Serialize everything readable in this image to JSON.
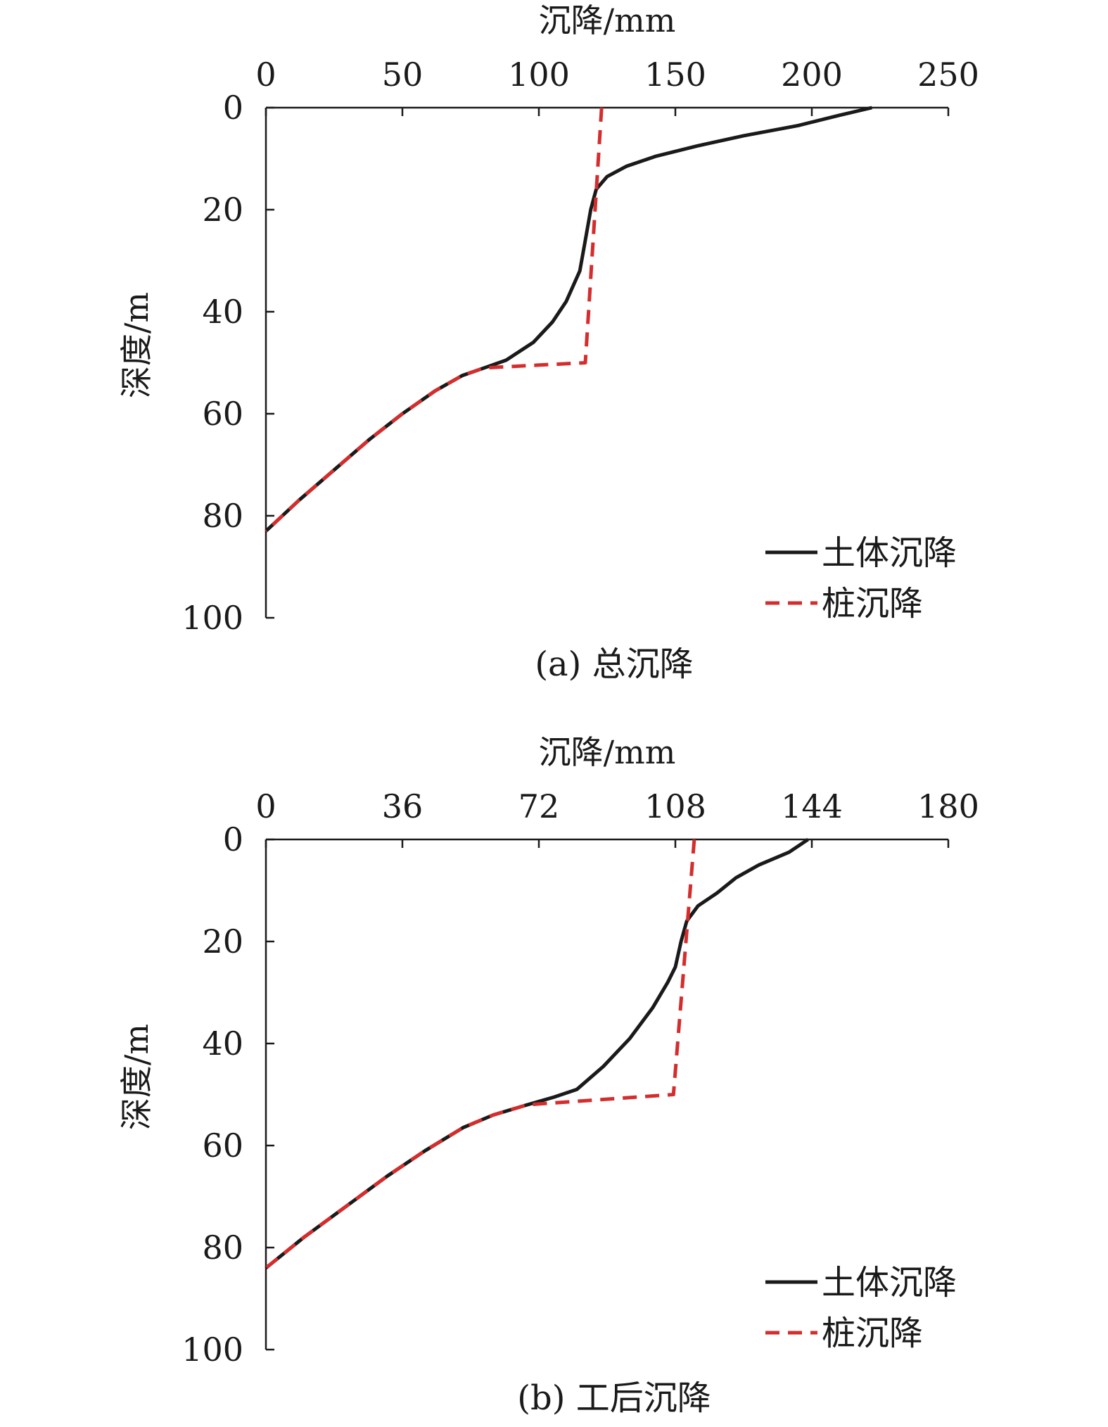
{
  "chart_data": [
    {
      "type": "line",
      "caption": "(a) 总沉降",
      "xlabel": "沉降/mm",
      "ylabel": "深度/m",
      "xlim": [
        0,
        250
      ],
      "ylim": [
        0,
        100
      ],
      "x_axis_position": "top",
      "y_inverted": true,
      "xticks": [
        0,
        50,
        100,
        150,
        200,
        250
      ],
      "yticks": [
        0,
        20,
        40,
        60,
        80,
        100
      ],
      "grid": false,
      "legend_position": "bottom-right",
      "series": [
        {
          "name": "土体沉降",
          "color": "#1a1a1a",
          "style": "solid",
          "points": [
            [
              222,
              0
            ],
            [
              210,
              1.5
            ],
            [
              195,
              3.5
            ],
            [
              175,
              5.5
            ],
            [
              158,
              7.5
            ],
            [
              143,
              9.5
            ],
            [
              132,
              11.5
            ],
            [
              125,
              13.5
            ],
            [
              121,
              16
            ],
            [
              119,
              20
            ],
            [
              117,
              26
            ],
            [
              115,
              32
            ],
            [
              110,
              38
            ],
            [
              105,
              42
            ],
            [
              98,
              46
            ],
            [
              88,
              49.5
            ],
            [
              80,
              51
            ],
            [
              72,
              52.5
            ],
            [
              62,
              55.5
            ],
            [
              50,
              60
            ],
            [
              38,
              65
            ],
            [
              25,
              71
            ],
            [
              12,
              77
            ],
            [
              0,
              83
            ]
          ]
        },
        {
          "name": "桩沉降",
          "color": "#d42d2d",
          "style": "dashed",
          "points": [
            [
              123,
              0
            ],
            [
              117,
              50
            ],
            [
              80,
              51
            ],
            [
              72,
              52.5
            ],
            [
              62,
              55.5
            ],
            [
              50,
              60
            ],
            [
              38,
              65
            ],
            [
              25,
              71
            ],
            [
              12,
              77
            ],
            [
              0,
              83
            ]
          ]
        }
      ]
    },
    {
      "type": "line",
      "caption": "(b) 工后沉降",
      "xlabel": "沉降/mm",
      "ylabel": "深度/m",
      "xlim": [
        0,
        180
      ],
      "ylim": [
        0,
        100
      ],
      "x_axis_position": "top",
      "y_inverted": true,
      "xticks": [
        0,
        36,
        72,
        108,
        144,
        180
      ],
      "yticks": [
        0,
        20,
        40,
        60,
        80,
        100
      ],
      "grid": false,
      "legend_position": "bottom-right",
      "series": [
        {
          "name": "土体沉降",
          "color": "#1a1a1a",
          "style": "solid",
          "points": [
            [
              143,
              0
            ],
            [
              138,
              2.5
            ],
            [
              130,
              5
            ],
            [
              124,
              7.5
            ],
            [
              119,
              10.5
            ],
            [
              114,
              13
            ],
            [
              111,
              16
            ],
            [
              109.5,
              20
            ],
            [
              108,
              25
            ],
            [
              106,
              28
            ],
            [
              102,
              33
            ],
            [
              96,
              39
            ],
            [
              89,
              44.5
            ],
            [
              82,
              49
            ],
            [
              76,
              50.5
            ],
            [
              69,
              52
            ],
            [
              60,
              54
            ],
            [
              52,
              56.5
            ],
            [
              42,
              61
            ],
            [
              32,
              66
            ],
            [
              21,
              72
            ],
            [
              10,
              78
            ],
            [
              0,
              84
            ]
          ]
        },
        {
          "name": "桩沉降",
          "color": "#d42d2d",
          "style": "dashed",
          "points": [
            [
              113,
              0
            ],
            [
              107.5,
              50
            ],
            [
              69,
              52
            ],
            [
              60,
              54
            ],
            [
              52,
              56.5
            ],
            [
              42,
              61
            ],
            [
              32,
              66
            ],
            [
              21,
              72
            ],
            [
              10,
              78
            ],
            [
              0,
              84
            ]
          ]
        }
      ]
    }
  ]
}
